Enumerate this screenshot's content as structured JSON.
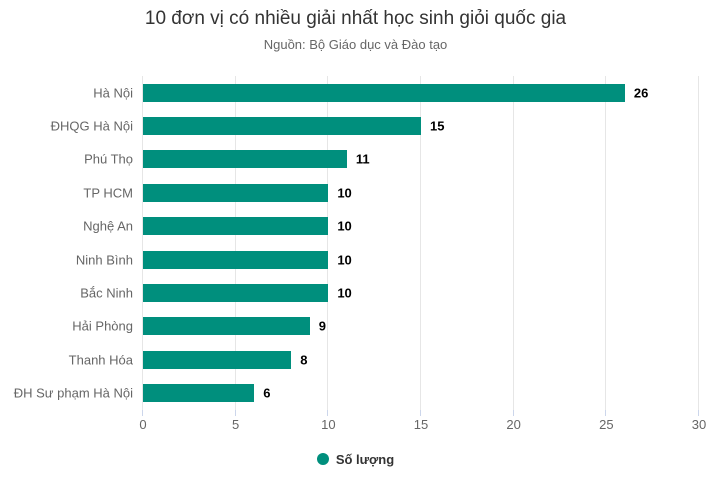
{
  "chart_data": {
    "type": "bar",
    "orientation": "horizontal",
    "title": "10 đơn vị có nhiều giải nhất học sinh giỏi quốc gia",
    "subtitle": "Nguồn: Bộ Giáo dục và Đào tạo",
    "categories": [
      "Hà Nội",
      "ĐHQG Hà Nội",
      "Phú Thọ",
      "TP HCM",
      "Nghệ An",
      "Ninh Bình",
      "Bắc Ninh",
      "Hải Phòng",
      "Thanh Hóa",
      "ĐH Sư phạm Hà Nội"
    ],
    "values": [
      26,
      15,
      11,
      10,
      10,
      10,
      10,
      9,
      8,
      6
    ],
    "series_name": "Số lượng",
    "xlim": [
      0,
      30
    ],
    "xticks": [
      0,
      5,
      10,
      15,
      20,
      25,
      30
    ],
    "grid": true,
    "legend_position": "bottom",
    "legend_label": "Số lượng",
    "colors": {
      "bar": "#008f7d",
      "grid": "#e6e6e6",
      "axis_line": "#ccd6eb",
      "category_label": "#666666",
      "tick_label": "#666666",
      "value_label": "#000000",
      "title": "#333333",
      "subtitle": "#666666",
      "legend_text": "#333333"
    }
  }
}
